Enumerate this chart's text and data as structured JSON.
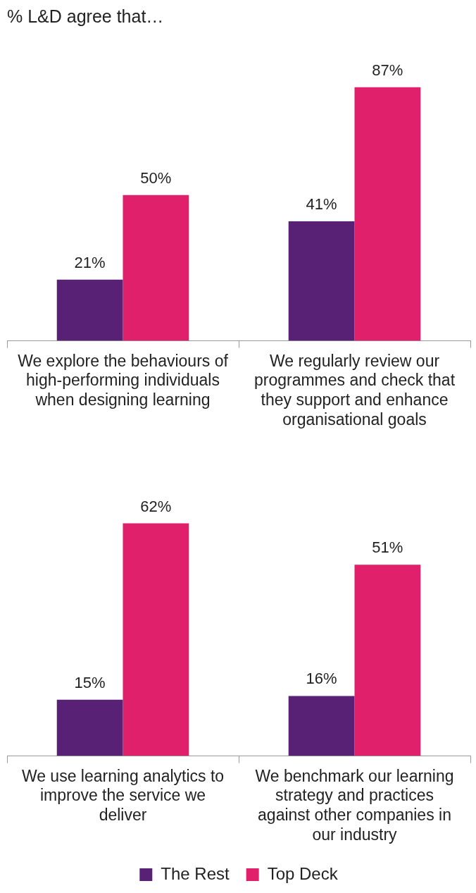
{
  "chart_data": [
    {
      "type": "bar",
      "title": "% L&D agree that…",
      "categories": [
        "We explore the behaviours of high-performing individuals when designing learning",
        "We regularly review our programmes and check that they support and enhance organisational goals"
      ],
      "series": [
        {
          "color": "#582175",
          "values": [
            21,
            41
          ],
          "value_labels": [
            "21%",
            "41%"
          ]
        },
        {
          "color": "#e0206a",
          "values": [
            50,
            87
          ],
          "value_labels": [
            "50%",
            "87%"
          ]
        }
      ],
      "legend": false
    },
    {
      "type": "bar",
      "categories": [
        "We use learning analytics to improve the service we deliver",
        "We benchmark our learning strategy and practices against other companies in our industry"
      ],
      "series": [
        {
          "name": "The Rest",
          "color": "#582175",
          "values": [
            15,
            16
          ],
          "value_labels": [
            "15%",
            "16%"
          ]
        },
        {
          "name": "Top Deck",
          "color": "#e0206a",
          "values": [
            62,
            51
          ],
          "value_labels": [
            "62%",
            "51%"
          ]
        }
      ],
      "legend": "bottom"
    }
  ]
}
